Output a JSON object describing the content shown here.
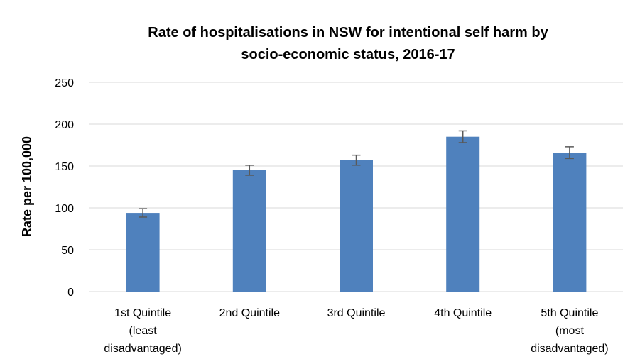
{
  "chart_data": {
    "type": "bar",
    "title": "Rate of hospitalisations in NSW for intentional self harm by\nsocio-economic status, 2016-17",
    "y_label": "Rate per 100,000",
    "categories": [
      "1st Quintile\n(least\ndisadvantaged)",
      "2nd Quintile",
      "3rd Quintile",
      "4th Quintile",
      "5th Quintile\n(most\ndisadvantaged)"
    ],
    "values": [
      94,
      145,
      157,
      185,
      166
    ],
    "errors": [
      5,
      6,
      6,
      7,
      7
    ],
    "color": "#4f81bd",
    "error_color": "#595959",
    "ylim": [
      0,
      250
    ],
    "yticks": [
      0,
      50,
      100,
      150,
      200,
      250
    ],
    "grid": true
  }
}
